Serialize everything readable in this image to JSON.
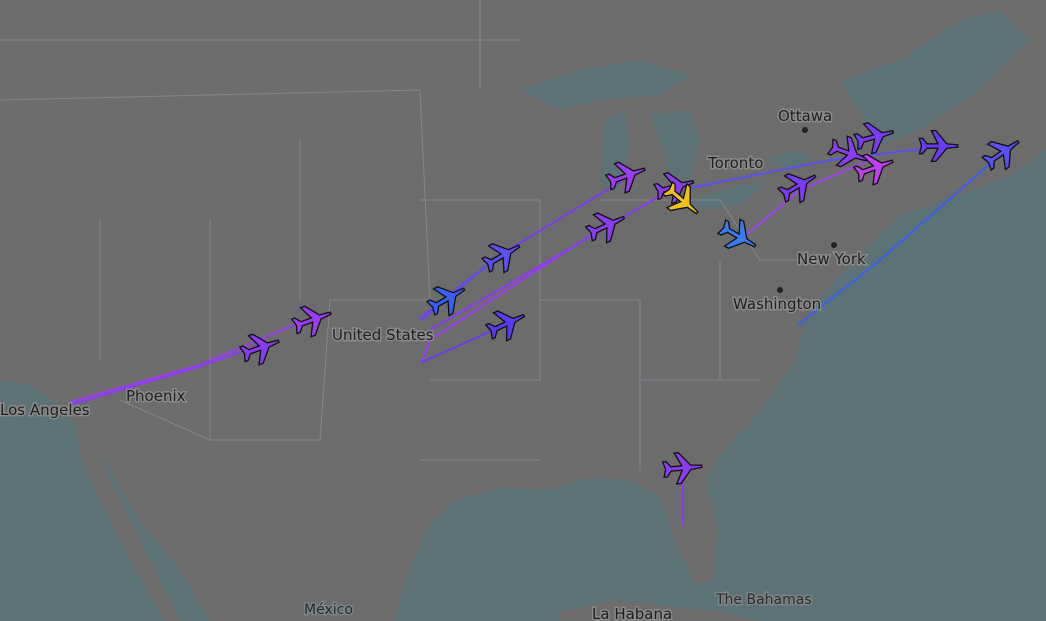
{
  "map": {
    "places": [
      {
        "name": "Ottawa"
      },
      {
        "name": "Toronto"
      },
      {
        "name": "New York"
      },
      {
        "name": "Washington"
      },
      {
        "name": "United States"
      },
      {
        "name": "Phoenix"
      },
      {
        "name": "Los Angeles"
      },
      {
        "name": "México"
      },
      {
        "name": "La Habana"
      },
      {
        "name": "The Bahamas"
      }
    ]
  }
}
